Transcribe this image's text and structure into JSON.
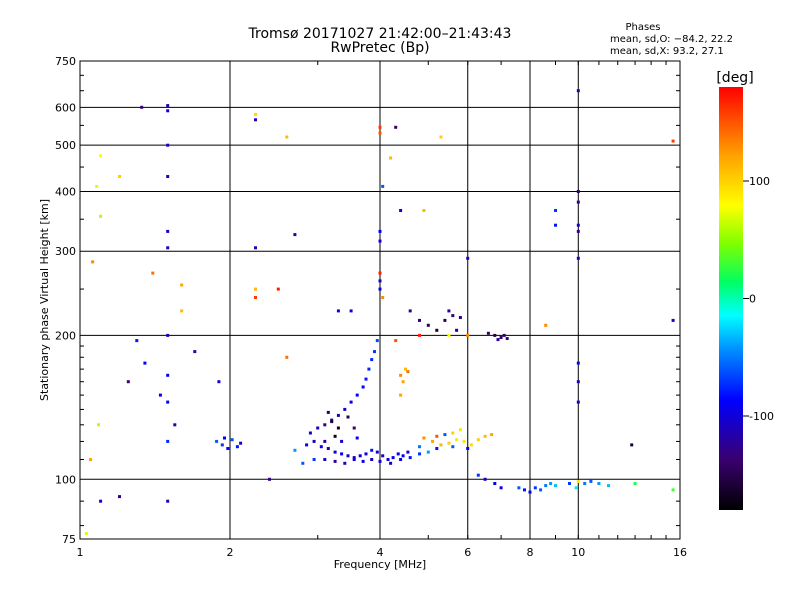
{
  "chart_data": {
    "type": "scatter",
    "title": "Tromsø 20171027 21:42:00–21:43:43",
    "subtitle": "RwPretec (Bp)",
    "xlabel": "Frequency [MHz]",
    "ylabel": "Stationary phase Virtual Height [km]",
    "x_scale": "log",
    "y_scale": "log",
    "xlim": [
      1,
      16
    ],
    "ylim": [
      75,
      750
    ],
    "x_ticks": [
      1,
      2,
      4,
      6,
      8,
      10,
      16
    ],
    "y_ticks": [
      75,
      100,
      200,
      300,
      400,
      500,
      600,
      750
    ],
    "grid": true,
    "stats": {
      "heading": "Phases",
      "line_o": "mean, sd,O: −84.2, 22.2",
      "line_x": "mean, sd,X:  93.2, 27.1"
    },
    "colorbar": {
      "label": "[deg]",
      "range": [
        -180,
        180
      ],
      "ticks": [
        100,
        0,
        -100
      ]
    },
    "series": [
      {
        "points": [
          [
            1.5,
            605,
            -120
          ],
          [
            1.5,
            590,
            -105
          ],
          [
            1.5,
            500,
            -110
          ],
          [
            1.5,
            430,
            -115
          ],
          [
            1.5,
            330,
            -110
          ],
          [
            1.5,
            305,
            -115
          ],
          [
            1.5,
            200,
            -110
          ],
          [
            1.5,
            165,
            -100
          ],
          [
            1.5,
            145,
            -95
          ],
          [
            1.5,
            120,
            -75
          ],
          [
            1.5,
            90,
            -110
          ],
          [
            1.33,
            600,
            -135
          ],
          [
            1.1,
            475,
            80
          ],
          [
            1.08,
            410,
            70
          ],
          [
            1.1,
            355,
            60
          ],
          [
            1.06,
            285,
            130
          ],
          [
            1.05,
            110,
            120
          ],
          [
            1.09,
            130,
            60
          ],
          [
            1.2,
            430,
            100
          ],
          [
            1.4,
            270,
            140
          ],
          [
            1.6,
            255,
            120
          ],
          [
            1.6,
            225,
            110
          ],
          [
            1.3,
            195,
            -80
          ],
          [
            1.25,
            160,
            -135
          ],
          [
            1.35,
            175,
            -90
          ],
          [
            1.45,
            150,
            -95
          ],
          [
            1.55,
            130,
            -120
          ],
          [
            1.7,
            185,
            -110
          ],
          [
            1.9,
            160,
            -100
          ],
          [
            1.1,
            90,
            -100
          ],
          [
            1.2,
            92,
            -130
          ],
          [
            1.03,
            77,
            70
          ],
          [
            1.88,
            120,
            -60
          ],
          [
            1.93,
            118,
            -70
          ],
          [
            1.98,
            116,
            -85
          ],
          [
            2.02,
            121,
            -60
          ],
          [
            2.07,
            117,
            -80
          ],
          [
            2.1,
            119,
            -100
          ],
          [
            1.95,
            122,
            -90
          ],
          [
            2.25,
            580,
            95
          ],
          [
            2.25,
            565,
            -125
          ],
          [
            2.25,
            250,
            110
          ],
          [
            2.25,
            240,
            160
          ],
          [
            2.25,
            305,
            -110
          ],
          [
            2.5,
            250,
            170
          ],
          [
            2.6,
            520,
            110
          ],
          [
            2.7,
            325,
            -120
          ],
          [
            2.6,
            180,
            140
          ],
          [
            2.4,
            100,
            -130
          ],
          [
            2.7,
            115,
            -40
          ],
          [
            2.85,
            118,
            -90
          ],
          [
            2.95,
            120,
            -110
          ],
          [
            3.05,
            117,
            -95
          ],
          [
            3.15,
            116,
            -120
          ],
          [
            3.25,
            114,
            -100
          ],
          [
            3.35,
            113,
            -90
          ],
          [
            3.45,
            112,
            -105
          ],
          [
            3.55,
            111,
            -110
          ],
          [
            3.65,
            112,
            -95
          ],
          [
            3.75,
            113,
            -100
          ],
          [
            3.85,
            115,
            -80
          ],
          [
            3.95,
            114,
            -100
          ],
          [
            4.05,
            112,
            -110
          ],
          [
            4.15,
            110,
            -100
          ],
          [
            4.25,
            111,
            -90
          ],
          [
            4.35,
            113,
            -95
          ],
          [
            4.45,
            112,
            -85
          ],
          [
            4.55,
            114,
            -100
          ],
          [
            2.8,
            108,
            -60
          ],
          [
            2.95,
            110,
            -70
          ],
          [
            3.1,
            110,
            -110
          ],
          [
            3.25,
            109,
            -125
          ],
          [
            3.4,
            108,
            -115
          ],
          [
            3.55,
            110,
            -100
          ],
          [
            3.7,
            109,
            -95
          ],
          [
            3.85,
            110,
            -110
          ],
          [
            4.0,
            109,
            -105
          ],
          [
            4.2,
            108,
            -100
          ],
          [
            4.4,
            110,
            -95
          ],
          [
            4.6,
            111,
            -80
          ],
          [
            4.8,
            113,
            -70
          ],
          [
            2.9,
            125,
            -100
          ],
          [
            3.0,
            128,
            -115
          ],
          [
            3.1,
            130,
            -130
          ],
          [
            3.2,
            133,
            -120
          ],
          [
            3.3,
            136,
            -110
          ],
          [
            3.4,
            140,
            -105
          ],
          [
            3.5,
            145,
            -95
          ],
          [
            3.6,
            150,
            -90
          ],
          [
            3.7,
            156,
            -85
          ],
          [
            3.75,
            162,
            -80
          ],
          [
            3.8,
            170,
            -75
          ],
          [
            3.85,
            178,
            -75
          ],
          [
            3.9,
            185,
            -70
          ],
          [
            3.95,
            195,
            -65
          ],
          [
            3.15,
            138,
            -150
          ],
          [
            3.2,
            132,
            -160
          ],
          [
            3.3,
            128,
            -165
          ],
          [
            3.45,
            135,
            -150
          ],
          [
            3.55,
            128,
            -140
          ],
          [
            3.25,
            123,
            -170
          ],
          [
            3.1,
            120,
            -125
          ],
          [
            3.35,
            120,
            -100
          ],
          [
            3.6,
            122,
            -90
          ],
          [
            3.3,
            225,
            -100
          ],
          [
            3.5,
            225,
            -100
          ],
          [
            4.0,
            330,
            -90
          ],
          [
            4.0,
            315,
            -100
          ],
          [
            4.0,
            260,
            -110
          ],
          [
            4.0,
            250,
            -100
          ],
          [
            4.05,
            410,
            -60
          ],
          [
            4.0,
            545,
            160
          ],
          [
            4.0,
            530,
            150
          ],
          [
            4.0,
            270,
            170
          ],
          [
            4.05,
            240,
            130
          ],
          [
            4.2,
            470,
            110
          ],
          [
            4.3,
            545,
            -140
          ],
          [
            4.4,
            365,
            -100
          ],
          [
            4.9,
            365,
            110
          ],
          [
            5.3,
            520,
            100
          ],
          [
            4.8,
            200,
            170
          ],
          [
            4.4,
            165,
            130
          ],
          [
            4.45,
            160,
            120
          ],
          [
            4.5,
            170,
            110
          ],
          [
            4.55,
            168,
            140
          ],
          [
            4.4,
            150,
            120
          ],
          [
            4.3,
            195,
            150
          ],
          [
            4.6,
            225,
            -130
          ],
          [
            4.8,
            215,
            -140
          ],
          [
            5.0,
            210,
            -150
          ],
          [
            5.2,
            205,
            -160
          ],
          [
            5.4,
            215,
            -150
          ],
          [
            5.6,
            220,
            -140
          ],
          [
            5.5,
            225,
            -120
          ],
          [
            5.8,
            218,
            -130
          ],
          [
            5.5,
            200,
            80
          ],
          [
            5.7,
            205,
            -120
          ],
          [
            6.0,
            200,
            130
          ],
          [
            4.9,
            122,
            130
          ],
          [
            5.1,
            120,
            120
          ],
          [
            5.3,
            118,
            110
          ],
          [
            5.5,
            119,
            100
          ],
          [
            5.7,
            121,
            90
          ],
          [
            5.9,
            120,
            90
          ],
          [
            6.1,
            118,
            95
          ],
          [
            6.3,
            121,
            100
          ],
          [
            6.5,
            123,
            110
          ],
          [
            6.7,
            124,
            120
          ],
          [
            5.6,
            125,
            100
          ],
          [
            5.8,
            127,
            90
          ],
          [
            5.4,
            124,
            -60
          ],
          [
            5.2,
            116,
            -80
          ],
          [
            5.0,
            114,
            -40
          ],
          [
            4.8,
            117,
            -50
          ],
          [
            5.2,
            123,
            150
          ],
          [
            5.6,
            117,
            -60
          ],
          [
            6.0,
            116,
            -90
          ],
          [
            6.3,
            102,
            -70
          ],
          [
            6.6,
            202,
            -140
          ],
          [
            6.8,
            200,
            -150
          ],
          [
            7.0,
            198,
            -135
          ],
          [
            6.9,
            196,
            -120
          ],
          [
            7.1,
            200,
            -140
          ],
          [
            7.2,
            197,
            -130
          ],
          [
            6.0,
            290,
            -110
          ],
          [
            6.5,
            100,
            -110
          ],
          [
            6.8,
            98,
            -90
          ],
          [
            7.0,
            96,
            -100
          ],
          [
            7.6,
            96,
            -60
          ],
          [
            7.8,
            95,
            -80
          ],
          [
            8.0,
            94,
            -90
          ],
          [
            8.2,
            96,
            -70
          ],
          [
            8.4,
            95,
            -60
          ],
          [
            8.6,
            97,
            -50
          ],
          [
            8.8,
            98,
            -40
          ],
          [
            9.0,
            97,
            -30
          ],
          [
            9.6,
            98,
            -70
          ],
          [
            10.0,
            99,
            90
          ],
          [
            10.3,
            98,
            -50
          ],
          [
            10.6,
            99,
            -60
          ],
          [
            11.0,
            98,
            -40
          ],
          [
            11.5,
            97,
            -30
          ],
          [
            9.9,
            96,
            -20
          ],
          [
            9.0,
            340,
            -80
          ],
          [
            9.0,
            365,
            -70
          ],
          [
            8.6,
            210,
            130
          ],
          [
            10.0,
            650,
            -120
          ],
          [
            10.0,
            400,
            -140
          ],
          [
            10.0,
            380,
            -120
          ],
          [
            10.0,
            340,
            -110
          ],
          [
            10.0,
            330,
            -130
          ],
          [
            10.0,
            290,
            -100
          ],
          [
            10.0,
            175,
            -90
          ],
          [
            10.0,
            160,
            -110
          ],
          [
            10.0,
            145,
            -100
          ],
          [
            12.8,
            118,
            -160
          ],
          [
            15.5,
            510,
            160
          ],
          [
            15.5,
            215,
            -110
          ],
          [
            15.5,
            95,
            30
          ],
          [
            13.0,
            98,
            20
          ]
        ]
      }
    ]
  }
}
